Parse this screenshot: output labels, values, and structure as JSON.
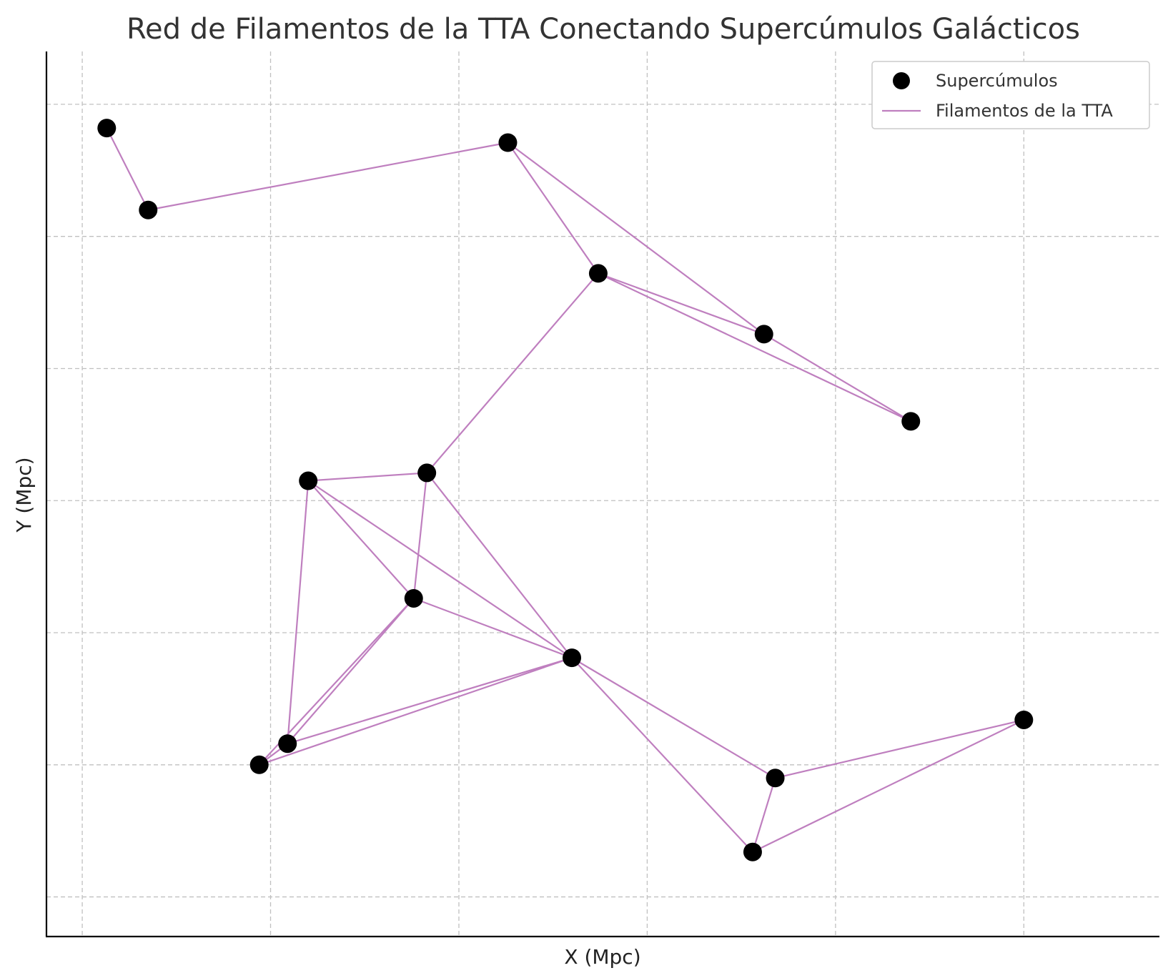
{
  "chart_data": {
    "type": "scatter",
    "title": "Red de Filamentos de la TTA Conectando Supercúmulos Galácticos",
    "xlabel": "X (Mpc)",
    "ylabel": "Y (Mpc)",
    "xlim": [
      -0.19,
      5.72
    ],
    "ylim": [
      -0.3,
      6.4
    ],
    "grid": true,
    "xticks": [
      0,
      1,
      2,
      3,
      4,
      5
    ],
    "yticks": [
      0,
      1,
      2,
      3,
      4,
      5,
      6
    ],
    "legend_position": "top-right",
    "legend": [
      {
        "label": "Supercúmulos",
        "kind": "marker"
      },
      {
        "label": "Filamentos de la TTA",
        "kind": "line"
      }
    ],
    "series": [
      {
        "name": "Supercúmulos",
        "kind": "scatter",
        "points": [
          {
            "x": 0.13,
            "y": 5.82
          },
          {
            "x": 0.35,
            "y": 5.2
          },
          {
            "x": 2.26,
            "y": 5.71
          },
          {
            "x": 2.74,
            "y": 4.72
          },
          {
            "x": 3.62,
            "y": 4.26
          },
          {
            "x": 4.4,
            "y": 3.6
          },
          {
            "x": 1.2,
            "y": 3.15
          },
          {
            "x": 1.83,
            "y": 3.21
          },
          {
            "x": 1.76,
            "y": 2.26
          },
          {
            "x": 2.6,
            "y": 1.81
          },
          {
            "x": 1.09,
            "y": 1.16
          },
          {
            "x": 0.94,
            "y": 1.0
          },
          {
            "x": 3.68,
            "y": 0.9
          },
          {
            "x": 3.56,
            "y": 0.34
          },
          {
            "x": 5.0,
            "y": 1.34
          }
        ]
      },
      {
        "name": "Filamentos de la TTA",
        "kind": "segments",
        "edges": [
          [
            0,
            1
          ],
          [
            1,
            2
          ],
          [
            2,
            3
          ],
          [
            2,
            4
          ],
          [
            3,
            4
          ],
          [
            3,
            5
          ],
          [
            4,
            5
          ],
          [
            3,
            7
          ],
          [
            6,
            7
          ],
          [
            6,
            8
          ],
          [
            6,
            9
          ],
          [
            6,
            10
          ],
          [
            7,
            8
          ],
          [
            7,
            9
          ],
          [
            8,
            10
          ],
          [
            8,
            11
          ],
          [
            8,
            9
          ],
          [
            9,
            10
          ],
          [
            9,
            11
          ],
          [
            9,
            13
          ],
          [
            9,
            12
          ],
          [
            12,
            13
          ],
          [
            12,
            14
          ],
          [
            13,
            14
          ],
          [
            10,
            11
          ]
        ]
      }
    ]
  },
  "colors": {
    "points": "#000000",
    "filaments": "#bf7fbf",
    "grid": "#c0c0c0",
    "axes": "#000000",
    "title": "#333333",
    "legend_border": "#cccccc"
  }
}
